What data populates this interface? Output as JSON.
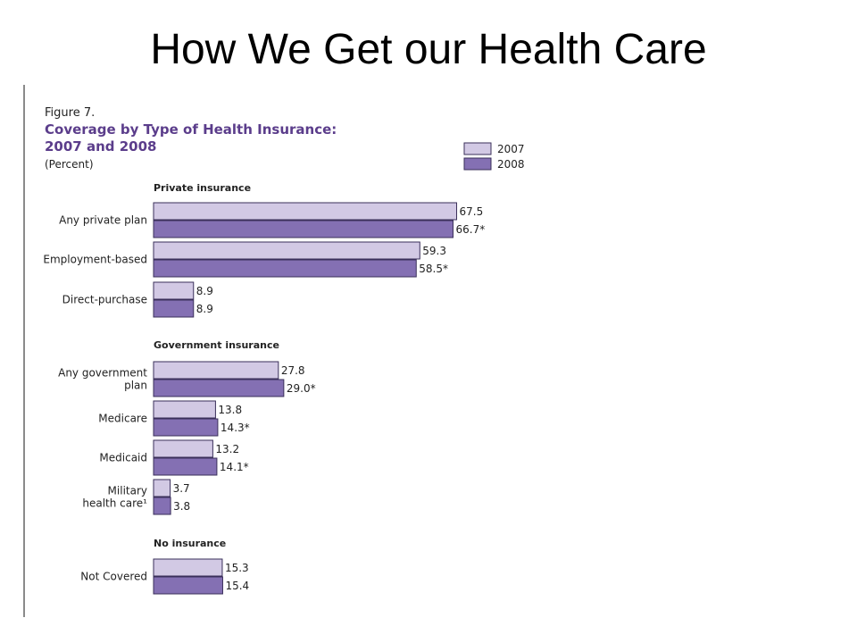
{
  "slide": {
    "title": "How We Get our Health Care"
  },
  "colors": {
    "bar_2007": "#d2c9e4",
    "bar_2008": "#8470b3",
    "bar_stroke": "#3a2f5a",
    "title_purple": "#5b3d8b",
    "text": "#222222"
  },
  "chart_data": {
    "type": "bar",
    "orientation": "horizontal",
    "figure_label": "Figure 7.",
    "title": "Coverage by Type of Health Insurance:",
    "title_line2": "2007 and 2008",
    "subtitle": "(Percent)",
    "legend": {
      "position": "top-right",
      "entries": [
        "2007",
        "2008"
      ]
    },
    "groups": [
      {
        "name": "Private insurance",
        "categories": [
          {
            "label": [
              "Any private plan"
            ],
            "values": [
              67.5,
              66.7
            ],
            "value_labels": [
              "67.5",
              "66.7*"
            ]
          },
          {
            "label": [
              "Employment-based"
            ],
            "values": [
              59.3,
              58.5
            ],
            "value_labels": [
              "59.3",
              "58.5*"
            ]
          },
          {
            "label": [
              "Direct-purchase"
            ],
            "values": [
              8.9,
              8.9
            ],
            "value_labels": [
              "8.9",
              "8.9"
            ]
          }
        ]
      },
      {
        "name": "Government insurance",
        "categories": [
          {
            "label": [
              "Any government",
              "plan"
            ],
            "values": [
              27.8,
              29.0
            ],
            "value_labels": [
              "27.8",
              "29.0*"
            ]
          },
          {
            "label": [
              "Medicare"
            ],
            "values": [
              13.8,
              14.3
            ],
            "value_labels": [
              "13.8",
              "14.3*"
            ]
          },
          {
            "label": [
              "Medicaid"
            ],
            "values": [
              13.2,
              14.1
            ],
            "value_labels": [
              "13.2",
              "14.1*"
            ]
          },
          {
            "label": [
              "Military",
              "health care¹"
            ],
            "values": [
              3.7,
              3.8
            ],
            "value_labels": [
              "3.7",
              "3.8"
            ]
          }
        ]
      },
      {
        "name": "No insurance",
        "categories": [
          {
            "label": [
              "Not Covered"
            ],
            "values": [
              15.3,
              15.4
            ],
            "value_labels": [
              "15.3",
              "15.4"
            ]
          }
        ]
      }
    ]
  }
}
